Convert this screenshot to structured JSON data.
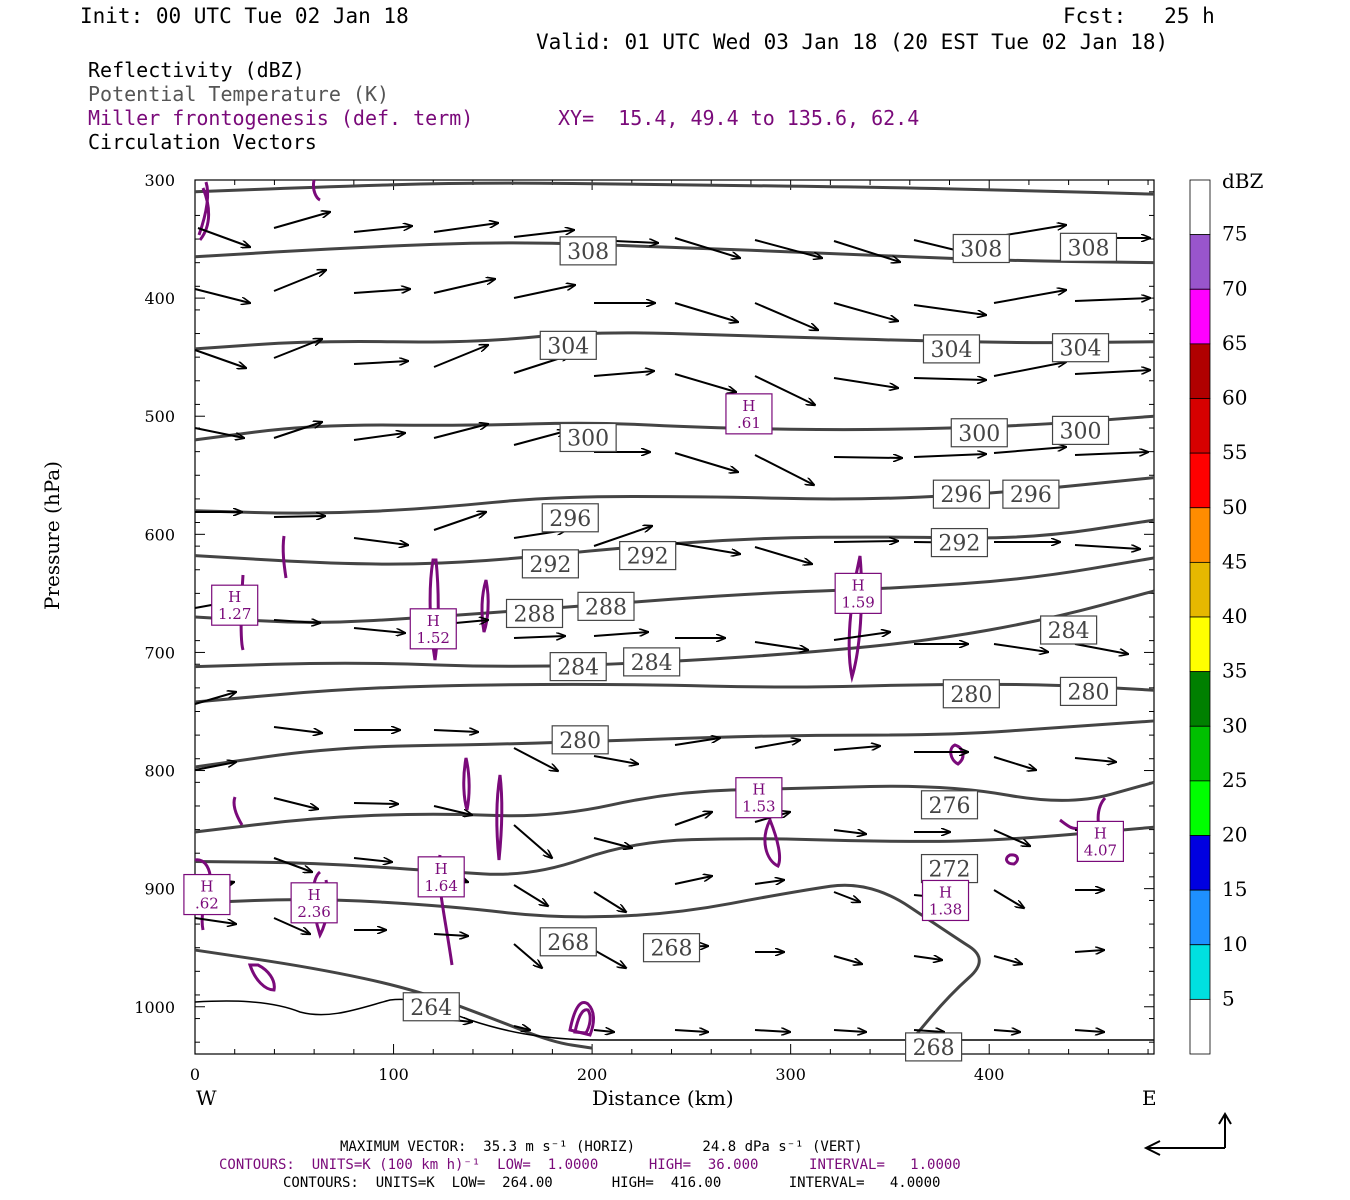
{
  "header": {
    "init": "Init: 00 UTC Tue 02 Jan 18",
    "fcst": "Fcst:   25 h",
    "valid": "Valid: 01 UTC Wed 03 Jan 18 (20 EST Tue 02 Jan 18)"
  },
  "legend": {
    "fields": [
      {
        "label": "Reflectivity (dBZ)",
        "color": "#000000"
      },
      {
        "label": "Potential Temperature (K)",
        "color": "#555555"
      },
      {
        "label": "Miller frontogenesis (def. term)",
        "color": "#7a0a7a"
      },
      {
        "label": "Circulation Vectors",
        "color": "#000000"
      }
    ],
    "xy": "XY=  15.4, 49.4 to 135.6, 62.4"
  },
  "colorbar": {
    "title": "dBZ",
    "levels": [
      "5",
      "10",
      "15",
      "20",
      "25",
      "30",
      "35",
      "40",
      "45",
      "50",
      "55",
      "60",
      "65",
      "70",
      "75"
    ],
    "colors": [
      "#ffffff",
      "#00e0e0",
      "#1e90ff",
      "#0000e0",
      "#00ff00",
      "#00c000",
      "#008000",
      "#ffff00",
      "#e6b800",
      "#ff8c00",
      "#ff0000",
      "#d60000",
      "#b00000",
      "#ff00ff",
      "#9955cc",
      "#ffffff"
    ]
  },
  "footer": {
    "line1": "MAXIMUM VECTOR:  35.3 m s⁻¹ (HORIZ)        24.8 dPa s⁻¹ (VERT)",
    "line2": "CONTOURS:  UNITS=K (100 km h)⁻¹  LOW=  1.0000      HIGH=  36.000      INTERVAL=   1.0000",
    "line3": "CONTOURS:  UNITS=K  LOW=  264.00       HIGH=  416.00        INTERVAL=   4.0000"
  },
  "chart_data": {
    "type": "cross-section",
    "xlabel": "Distance (km)",
    "ylabel": "Pressure (hPa)",
    "xlim": [
      0,
      483
    ],
    "ylim": [
      1040,
      300
    ],
    "xticks": [
      0,
      100,
      200,
      300,
      400
    ],
    "yticks": [
      300,
      400,
      500,
      600,
      700,
      800,
      900,
      1000
    ],
    "x_end_labels": {
      "left": "W",
      "right": "E"
    },
    "theta_contours": [
      {
        "value": 308,
        "points": [
          [
            0,
            310
          ],
          [
            60,
            306
          ],
          [
            140,
            302
          ],
          [
            240,
            304
          ],
          [
            340,
            306
          ],
          [
            420,
            309
          ],
          [
            483,
            312
          ]
        ]
      },
      {
        "value": 308,
        "points": [
          [
            0,
            365
          ],
          [
            80,
            357
          ],
          [
            160,
            352
          ],
          [
            240,
            357
          ],
          [
            320,
            362
          ],
          [
            400,
            368
          ],
          [
            483,
            370
          ]
        ]
      },
      {
        "value": 304,
        "points": [
          [
            0,
            443
          ],
          [
            60,
            436
          ],
          [
            140,
            438
          ],
          [
            200,
            428
          ],
          [
            280,
            432
          ],
          [
            360,
            436
          ],
          [
            420,
            438
          ],
          [
            483,
            437
          ]
        ]
      },
      {
        "value": 300,
        "points": [
          [
            0,
            520
          ],
          [
            60,
            507
          ],
          [
            140,
            508
          ],
          [
            200,
            505
          ],
          [
            260,
            510
          ],
          [
            340,
            512
          ],
          [
            420,
            508
          ],
          [
            483,
            500
          ]
        ]
      },
      {
        "value": 296,
        "points": [
          [
            0,
            580
          ],
          [
            60,
            583
          ],
          [
            120,
            578
          ],
          [
            180,
            568
          ],
          [
            260,
            568
          ],
          [
            330,
            571
          ],
          [
            400,
            566
          ],
          [
            483,
            552
          ]
        ]
      },
      {
        "value": 292,
        "points": [
          [
            0,
            618
          ],
          [
            80,
            626
          ],
          [
            140,
            624
          ],
          [
            210,
            612
          ],
          [
            280,
            603
          ],
          [
            350,
            602
          ],
          [
            420,
            604
          ],
          [
            483,
            588
          ]
        ]
      },
      {
        "value": 288,
        "points": [
          [
            0,
            670
          ],
          [
            60,
            676
          ],
          [
            120,
            670
          ],
          [
            200,
            660
          ],
          [
            280,
            650
          ],
          [
            350,
            646
          ],
          [
            420,
            638
          ],
          [
            483,
            620
          ]
        ]
      },
      {
        "value": 284,
        "points": [
          [
            0,
            712
          ],
          [
            80,
            708
          ],
          [
            160,
            713
          ],
          [
            240,
            708
          ],
          [
            310,
            700
          ],
          [
            370,
            690
          ],
          [
            430,
            672
          ],
          [
            483,
            648
          ]
        ]
      },
      {
        "value": 280,
        "points": [
          [
            0,
            742
          ],
          [
            80,
            730
          ],
          [
            160,
            727
          ],
          [
            220,
            727
          ],
          [
            300,
            730
          ],
          [
            370,
            727
          ],
          [
            430,
            727
          ],
          [
            483,
            732
          ]
        ]
      },
      {
        "value": 280,
        "points": [
          [
            0,
            797
          ],
          [
            70,
            780
          ],
          [
            150,
            778
          ],
          [
            220,
            774
          ],
          [
            300,
            770
          ],
          [
            380,
            770
          ],
          [
            440,
            763
          ],
          [
            483,
            758
          ]
        ]
      },
      {
        "value": 276,
        "points": [
          [
            0,
            852
          ],
          [
            60,
            840
          ],
          [
            120,
            836
          ],
          [
            180,
            840
          ],
          [
            240,
            818
          ],
          [
            300,
            815
          ],
          [
            380,
            812
          ],
          [
            440,
            830
          ],
          [
            483,
            810
          ]
        ]
      },
      {
        "value": 272,
        "points": [
          [
            0,
            877
          ],
          [
            60,
            878
          ],
          [
            120,
            885
          ],
          [
            170,
            890
          ],
          [
            220,
            860
          ],
          [
            280,
            857
          ],
          [
            340,
            860
          ],
          [
            400,
            860
          ],
          [
            483,
            848
          ]
        ]
      },
      {
        "value": 268,
        "points": [
          [
            0,
            912
          ],
          [
            60,
            908
          ],
          [
            130,
            915
          ],
          [
            180,
            925
          ],
          [
            240,
            922
          ],
          [
            300,
            903
          ],
          [
            340,
            893
          ],
          [
            380,
            938
          ],
          [
            400,
            960
          ],
          [
            380,
            990
          ],
          [
            360,
            1030
          ]
        ]
      },
      {
        "value": 264,
        "points": [
          [
            0,
            952
          ],
          [
            60,
            967
          ],
          [
            110,
            985
          ],
          [
            150,
            1010
          ],
          [
            180,
            1030
          ],
          [
            200,
            1035
          ]
        ]
      }
    ],
    "theta_labels": [
      {
        "text": "308",
        "x": 198,
        "p": 360
      },
      {
        "text": "308",
        "x": 396,
        "p": 358
      },
      {
        "text": "308",
        "x": 450,
        "p": 357
      },
      {
        "text": "304",
        "x": 188,
        "p": 440
      },
      {
        "text": "304",
        "x": 381,
        "p": 443
      },
      {
        "text": "304",
        "x": 446,
        "p": 442
      },
      {
        "text": "300",
        "x": 198,
        "p": 518
      },
      {
        "text": "300",
        "x": 395,
        "p": 514
      },
      {
        "text": "300",
        "x": 446,
        "p": 512
      },
      {
        "text": "296",
        "x": 189,
        "p": 586
      },
      {
        "text": "296",
        "x": 386,
        "p": 566
      },
      {
        "text": "296",
        "x": 421,
        "p": 566
      },
      {
        "text": "292",
        "x": 179,
        "p": 625
      },
      {
        "text": "292",
        "x": 228,
        "p": 618
      },
      {
        "text": "292",
        "x": 385,
        "p": 607
      },
      {
        "text": "288",
        "x": 171,
        "p": 667
      },
      {
        "text": "288",
        "x": 207,
        "p": 661
      },
      {
        "text": "284",
        "x": 193,
        "p": 712
      },
      {
        "text": "284",
        "x": 230,
        "p": 708
      },
      {
        "text": "284",
        "x": 440,
        "p": 681
      },
      {
        "text": "280",
        "x": 194,
        "p": 774
      },
      {
        "text": "280",
        "x": 391,
        "p": 735
      },
      {
        "text": "280",
        "x": 450,
        "p": 733
      },
      {
        "text": "276",
        "x": 380,
        "p": 829
      },
      {
        "text": "272",
        "x": 380,
        "p": 883
      },
      {
        "text": "268",
        "x": 188,
        "p": 945
      },
      {
        "text": "268",
        "x": 240,
        "p": 950
      },
      {
        "text": "264",
        "x": 119,
        "p": 1000
      },
      {
        "text": "268",
        "x": 372,
        "p": 1034
      }
    ],
    "frontogenesis_maxima": [
      {
        "label": "H",
        "value": "1.27",
        "x": 20,
        "p": 660
      },
      {
        "label": "H",
        "value": "1.52",
        "x": 120,
        "p": 680
      },
      {
        "label": "H",
        "value": ".61",
        "x": 279,
        "p": 498
      },
      {
        "label": "H",
        "value": "1.59",
        "x": 334,
        "p": 650
      },
      {
        "label": "H",
        "value": "1.53",
        "x": 284,
        "p": 823
      },
      {
        "label": "H",
        "value": "4.07",
        "x": 456,
        "p": 860
      },
      {
        "label": "H",
        "value": "1.64",
        "x": 124,
        "p": 890
      },
      {
        "label": "H",
        "value": ".62",
        "x": 6,
        "p": 905
      },
      {
        "label": "H",
        "value": "2.36",
        "x": 60,
        "p": 912
      },
      {
        "label": "H",
        "value": "1.38",
        "x": 378,
        "p": 910
      }
    ]
  }
}
